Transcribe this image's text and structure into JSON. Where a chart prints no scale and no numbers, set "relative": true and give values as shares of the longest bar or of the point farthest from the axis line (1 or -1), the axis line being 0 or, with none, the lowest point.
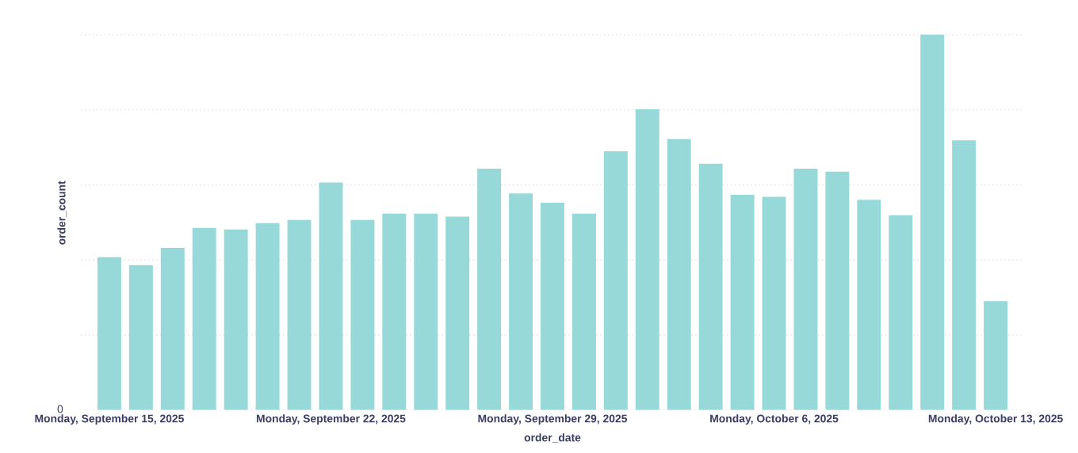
{
  "chart_data": {
    "type": "bar",
    "relative": true,
    "xlabel": "order_date",
    "ylabel": "order_count",
    "categories": [
      "Monday, September 15, 2025",
      null,
      null,
      null,
      null,
      null,
      null,
      "Monday, September 22, 2025",
      null,
      null,
      null,
      null,
      null,
      null,
      "Monday, September 29, 2025",
      null,
      null,
      null,
      null,
      null,
      null,
      "Monday, October 6, 2025",
      null,
      null,
      null,
      null,
      null,
      null,
      "Monday, October 13, 2025"
    ],
    "series": [
      {
        "color": "#97d9d9",
        "values": [
          0.407,
          0.386,
          0.432,
          0.485,
          0.481,
          0.498,
          0.506,
          0.606,
          0.506,
          0.523,
          0.523,
          0.515,
          0.643,
          0.577,
          0.552,
          0.523,
          0.689,
          0.801,
          0.722,
          0.656,
          0.573,
          0.568,
          0.643,
          0.635,
          0.56,
          0.519,
          1,
          0.718,
          0.29
        ]
      }
    ],
    "annotations": [
      "0"
    ],
    "grid": "y"
  }
}
